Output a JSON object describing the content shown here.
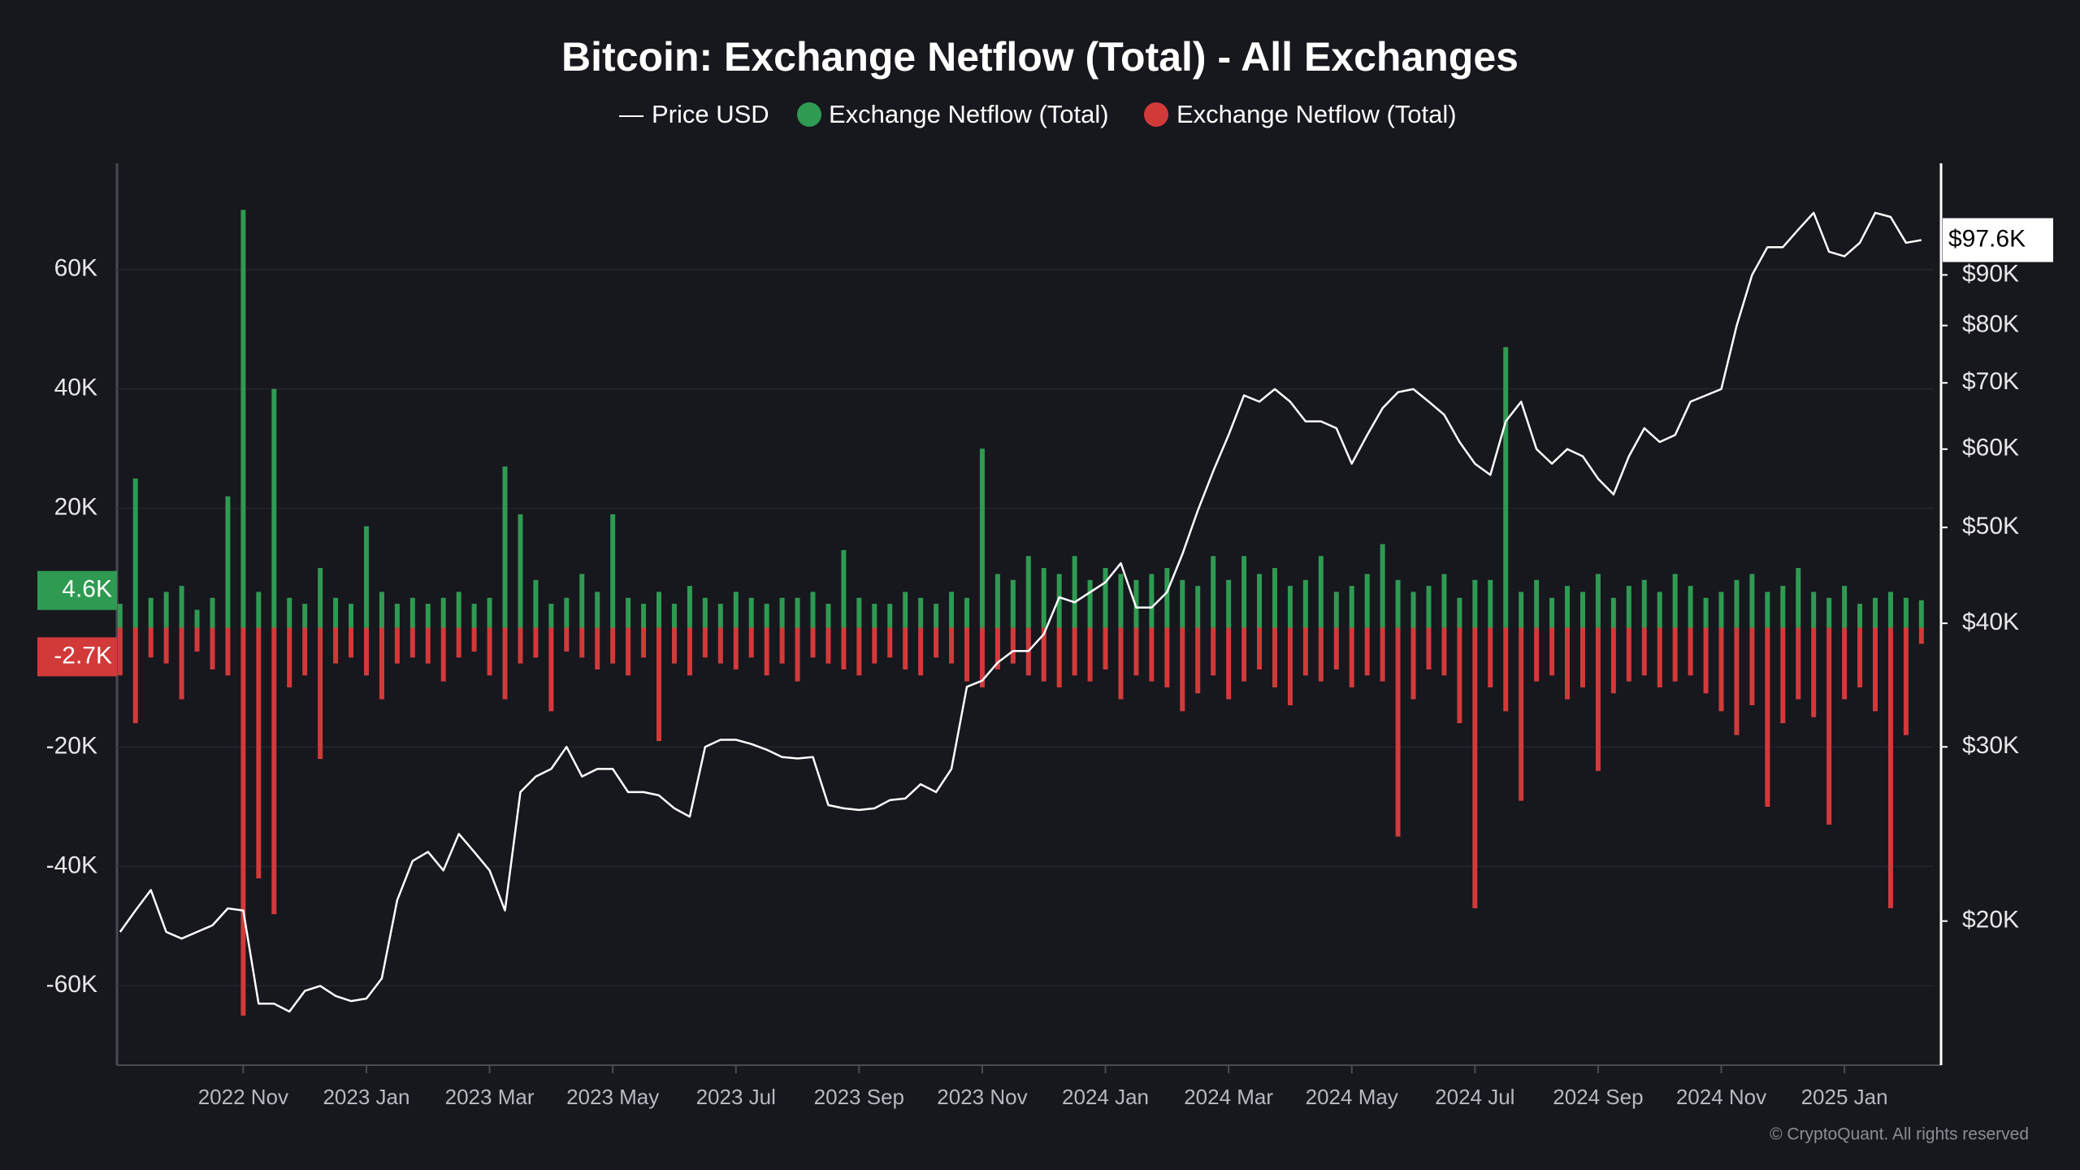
{
  "chart_data": {
    "type": "combo",
    "title": "Bitcoin: Exchange Netflow (Total) - All Exchanges",
    "footer": "© CryptoQuant. All rights reserved",
    "categories": [
      null,
      null,
      null,
      null,
      null,
      null,
      null,
      null,
      "2022 Nov",
      null,
      null,
      null,
      null,
      null,
      null,
      null,
      "2023 Jan",
      null,
      null,
      null,
      null,
      null,
      null,
      null,
      "2023 Mar",
      null,
      null,
      null,
      null,
      null,
      null,
      null,
      "2023 May",
      null,
      null,
      null,
      null,
      null,
      null,
      null,
      "2023 Jul",
      null,
      null,
      null,
      null,
      null,
      null,
      null,
      "2023 Sep",
      null,
      null,
      null,
      null,
      null,
      null,
      null,
      "2023 Nov",
      null,
      null,
      null,
      null,
      null,
      null,
      null,
      "2024 Jan",
      null,
      null,
      null,
      null,
      null,
      null,
      null,
      "2024 Mar",
      null,
      null,
      null,
      null,
      null,
      null,
      null,
      "2024 May",
      null,
      null,
      null,
      null,
      null,
      null,
      null,
      "2024 Jul",
      null,
      null,
      null,
      null,
      null,
      null,
      null,
      "2024 Sep",
      null,
      null,
      null,
      null,
      null,
      null,
      null,
      "2024 Nov",
      null,
      null,
      null,
      null,
      null,
      null,
      null,
      "2025 Jan",
      null,
      null,
      null,
      null,
      null
    ],
    "series": [
      {
        "name": "Price USD",
        "type": "line",
        "axis": "y2",
        "color": "#ffffff",
        "values": [
          19500,
          20500,
          21500,
          19500,
          19200,
          19500,
          19800,
          20600,
          20500,
          16500,
          16500,
          16200,
          17000,
          17200,
          16800,
          16600,
          16700,
          17500,
          21000,
          23000,
          23500,
          22500,
          24500,
          23500,
          22500,
          20500,
          27000,
          28000,
          28500,
          30000,
          28000,
          28500,
          28500,
          27000,
          27000,
          26800,
          26000,
          25500,
          30000,
          30500,
          30500,
          30200,
          29800,
          29300,
          29200,
          29300,
          26200,
          26000,
          25900,
          26000,
          26500,
          26600,
          27500,
          27000,
          28500,
          34500,
          35000,
          36500,
          37500,
          37500,
          39000,
          42500,
          42000,
          43000,
          44000,
          46000,
          41500,
          41500,
          43000,
          47000,
          52000,
          57000,
          62000,
          68000,
          67000,
          69000,
          67000,
          64000,
          64000,
          63000,
          58000,
          62000,
          66000,
          68500,
          69000,
          67000,
          65000,
          61000,
          58000,
          56500,
          64000,
          67000,
          60000,
          58000,
          60000,
          59000,
          56000,
          54000,
          59000,
          63000,
          61000,
          62000,
          67000,
          68000,
          69000,
          80000,
          90000,
          96000,
          96000,
          100000,
          104000,
          95000,
          94000,
          97000,
          104000,
          103000,
          97000,
          97600
        ]
      },
      {
        "name": "Exchange Netflow (Total)",
        "type": "bar",
        "color": "#2f9a52",
        "values": [
          4000,
          25000,
          5000,
          6000,
          7000,
          3000,
          5000,
          22000,
          70000,
          6000,
          40000,
          5000,
          4000,
          10000,
          5000,
          4000,
          17000,
          6000,
          4000,
          5000,
          4000,
          5000,
          6000,
          4000,
          5000,
          27000,
          19000,
          8000,
          4000,
          5000,
          9000,
          6000,
          19000,
          5000,
          4000,
          6000,
          4000,
          7000,
          5000,
          4000,
          6000,
          5000,
          4000,
          5000,
          5000,
          6000,
          4000,
          13000,
          5000,
          4000,
          4000,
          6000,
          5000,
          4000,
          6000,
          5000,
          30000,
          9000,
          8000,
          12000,
          10000,
          9000,
          12000,
          8000,
          10000,
          9000,
          8000,
          9000,
          10000,
          8000,
          7000,
          12000,
          8000,
          12000,
          9000,
          10000,
          7000,
          8000,
          12000,
          6000,
          7000,
          9000,
          14000,
          8000,
          6000,
          7000,
          9000,
          5000,
          8000,
          8000,
          47000,
          6000,
          8000,
          5000,
          7000,
          6000,
          9000,
          5000,
          7000,
          8000,
          6000,
          9000,
          7000,
          5000,
          6000,
          8000,
          9000,
          6000,
          7000,
          10000,
          6000,
          5000,
          7000,
          4000,
          5000,
          6000,
          5000,
          4600
        ]
      },
      {
        "name": "Exchange Netflow (Total)",
        "type": "bar",
        "color": "#d23a3a",
        "values": [
          -8000,
          -16000,
          -5000,
          -6000,
          -12000,
          -4000,
          -7000,
          -8000,
          -65000,
          -42000,
          -48000,
          -10000,
          -8000,
          -22000,
          -6000,
          -5000,
          -8000,
          -12000,
          -6000,
          -5000,
          -6000,
          -9000,
          -5000,
          -4000,
          -8000,
          -12000,
          -6000,
          -5000,
          -14000,
          -4000,
          -5000,
          -7000,
          -6000,
          -8000,
          -5000,
          -19000,
          -6000,
          -8000,
          -5000,
          -6000,
          -7000,
          -5000,
          -8000,
          -6000,
          -9000,
          -5000,
          -6000,
          -7000,
          -8000,
          -6000,
          -5000,
          -7000,
          -8000,
          -5000,
          -6000,
          -9000,
          -10000,
          -7000,
          -6000,
          -8000,
          -9000,
          -10000,
          -8000,
          -9000,
          -7000,
          -12000,
          -8000,
          -9000,
          -10000,
          -14000,
          -11000,
          -8000,
          -12000,
          -9000,
          -7000,
          -10000,
          -13000,
          -8000,
          -9000,
          -7000,
          -10000,
          -8000,
          -9000,
          -35000,
          -12000,
          -7000,
          -8000,
          -16000,
          -47000,
          -10000,
          -14000,
          -29000,
          -9000,
          -8000,
          -12000,
          -10000,
          -24000,
          -11000,
          -9000,
          -8000,
          -10000,
          -9000,
          -8000,
          -11000,
          -14000,
          -18000,
          -13000,
          -30000,
          -16000,
          -12000,
          -15000,
          -33000,
          -12000,
          -10000,
          -14000,
          -47000,
          -18000,
          -2700
        ]
      }
    ],
    "ylim": [
      -73300,
      77800
    ],
    "yticks": [
      {
        "value": -60000,
        "label": "-60K"
      },
      {
        "value": -40000,
        "label": "-40K"
      },
      {
        "value": -20000,
        "label": "-20K"
      },
      {
        "value": 20000,
        "label": "20K"
      },
      {
        "value": 40000,
        "label": "40K"
      },
      {
        "value": 60000,
        "label": "60K"
      }
    ],
    "y2lim": [
      14300,
      116700
    ],
    "y2_log": true,
    "y2ticks": [
      {
        "value": 20000,
        "label": "$20K"
      },
      {
        "value": 30000,
        "label": "$30K"
      },
      {
        "value": 40000,
        "label": "$40K"
      },
      {
        "value": 50000,
        "label": "$50K"
      },
      {
        "value": 60000,
        "label": "$60K"
      },
      {
        "value": 70000,
        "label": "$70K"
      },
      {
        "value": 80000,
        "label": "$80K"
      },
      {
        "value": 90000,
        "label": "$90K"
      }
    ],
    "last_value_labels": [
      {
        "value": 4600,
        "label": "4.6K",
        "color": "#2f9a52"
      },
      {
        "value": -2700,
        "label": "-2.7K",
        "color": "#d23a3a"
      }
    ],
    "y2_last_label": {
      "value": 97600,
      "label": "$97.6K"
    },
    "grid": true
  }
}
